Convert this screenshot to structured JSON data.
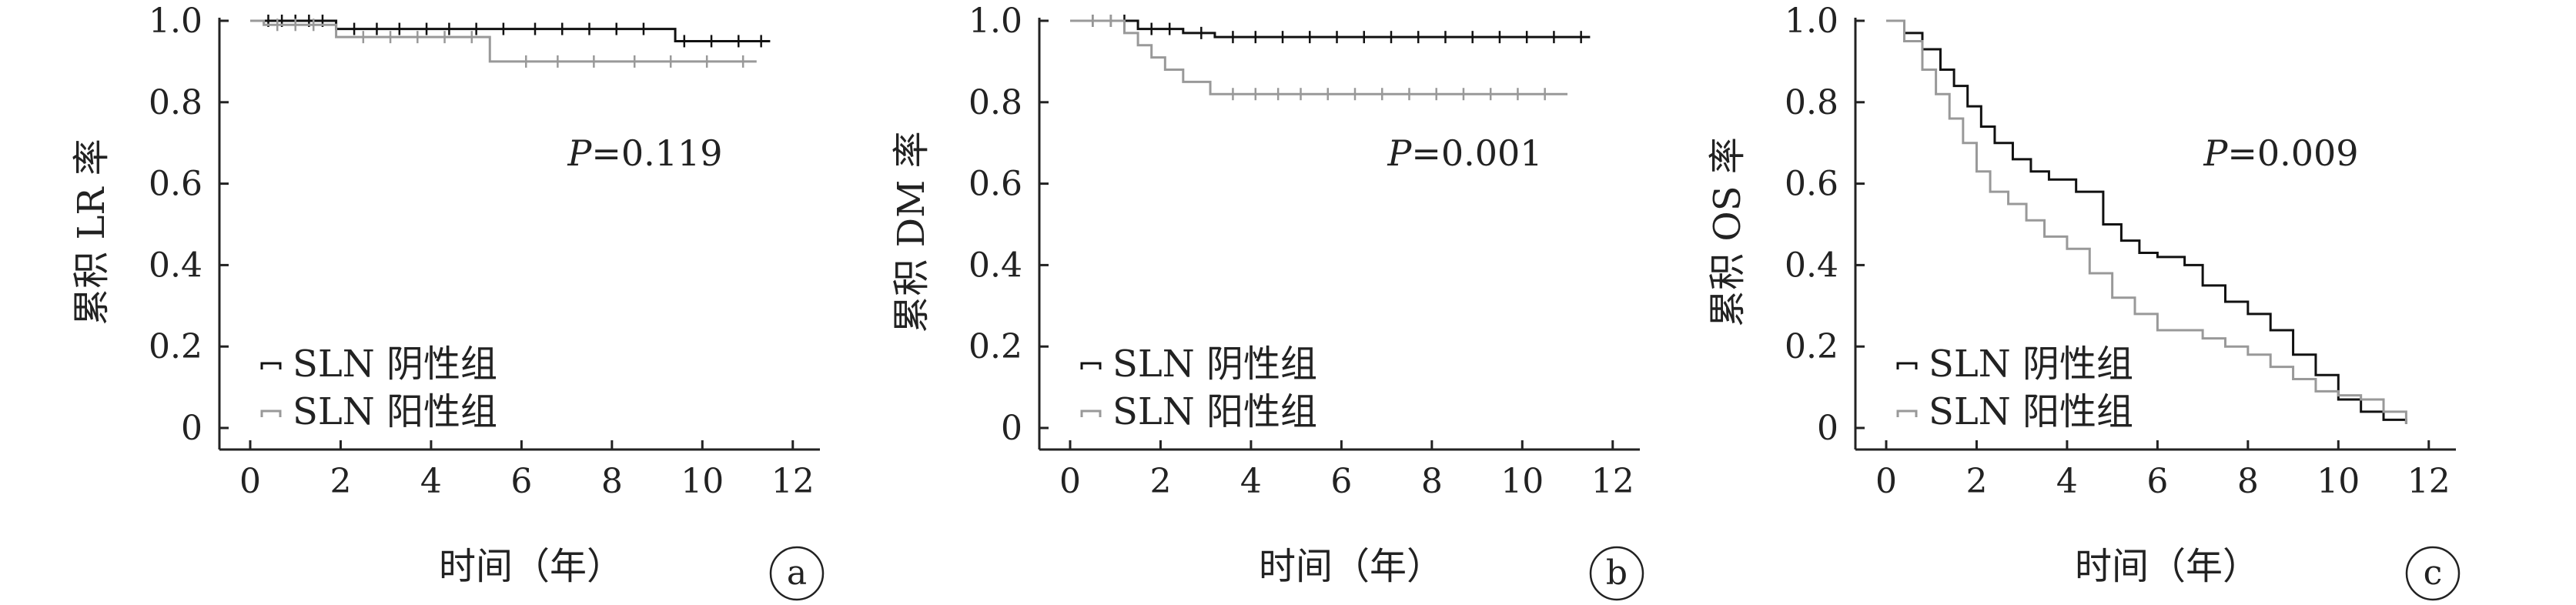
{
  "colors": {
    "negative": "#111111",
    "positive": "#999999",
    "axis": "#222222"
  },
  "chart_data": [
    {
      "type": "line",
      "panel": "a",
      "title": "",
      "xlabel": "时间（年）",
      "ylabel": "累积 LR 率",
      "xlim": [
        0,
        12
      ],
      "ylim": [
        0,
        1.0
      ],
      "xticks": [
        "0",
        "2",
        "4",
        "6",
        "8",
        "10",
        "12"
      ],
      "yticks": [
        "0",
        "0.2",
        "0.4",
        "0.6",
        "0.8",
        "1.0"
      ],
      "annotation": {
        "p_italic": "P",
        "p_value": "=0.119"
      },
      "legend_position": "bottom-left",
      "series": [
        {
          "name": "SLN 阴性组",
          "color": "#111111",
          "step": true,
          "x": [
            0,
            1.9,
            9.4,
            11.5
          ],
          "y": [
            1.0,
            0.98,
            0.95,
            0.95
          ],
          "censored": [
            0.4,
            0.7,
            1.0,
            1.3,
            1.6,
            2.3,
            2.8,
            3.3,
            3.9,
            4.4,
            5.0,
            5.6,
            6.3,
            6.9,
            7.5,
            8.1,
            8.7,
            9.6,
            10.2,
            10.8,
            11.3
          ]
        },
        {
          "name": "SLN 阳性组",
          "color": "#999999",
          "step": true,
          "x": [
            0,
            0.3,
            1.9,
            5.3,
            11.2
          ],
          "y": [
            1.0,
            0.99,
            0.96,
            0.9,
            0.9
          ],
          "censored": [
            0.6,
            1.0,
            1.4,
            2.5,
            3.1,
            3.7,
            4.3,
            4.9,
            6.1,
            6.8,
            7.6,
            8.5,
            9.3,
            10.1,
            10.9
          ]
        }
      ]
    },
    {
      "type": "line",
      "panel": "b",
      "title": "",
      "xlabel": "时间（年）",
      "ylabel": "累积 DM 率",
      "xlim": [
        0,
        12
      ],
      "ylim": [
        0,
        1.0
      ],
      "xticks": [
        "0",
        "2",
        "4",
        "6",
        "8",
        "10",
        "12"
      ],
      "yticks": [
        "0",
        "0.2",
        "0.4",
        "0.6",
        "0.8",
        "1.0"
      ],
      "annotation": {
        "p_italic": "P",
        "p_value": "=0.001"
      },
      "legend_position": "bottom-left",
      "series": [
        {
          "name": "SLN 阴性组",
          "color": "#111111",
          "step": true,
          "x": [
            0,
            1.5,
            2.5,
            3.2,
            11.5
          ],
          "y": [
            1.0,
            0.98,
            0.97,
            0.96,
            0.96
          ],
          "censored": [
            0.5,
            0.9,
            1.2,
            1.8,
            2.2,
            2.9,
            3.6,
            4.1,
            4.7,
            5.3,
            5.9,
            6.5,
            7.1,
            7.7,
            8.3,
            8.9,
            9.5,
            10.1,
            10.7,
            11.3
          ]
        },
        {
          "name": "SLN 阳性组",
          "color": "#999999",
          "step": true,
          "x": [
            0,
            1.2,
            1.5,
            1.8,
            2.1,
            2.5,
            3.1,
            11.0
          ],
          "y": [
            1.0,
            0.97,
            0.94,
            0.91,
            0.88,
            0.85,
            0.82,
            0.82
          ],
          "censored": [
            0.5,
            0.9,
            3.6,
            4.1,
            4.6,
            5.1,
            5.7,
            6.3,
            6.9,
            7.5,
            8.1,
            8.7,
            9.3,
            9.9,
            10.5
          ]
        }
      ]
    },
    {
      "type": "line",
      "panel": "c",
      "title": "",
      "xlabel": "时间（年）",
      "ylabel": "累积 OS 率",
      "xlim": [
        0,
        12
      ],
      "ylim": [
        0,
        1.0
      ],
      "xticks": [
        "0",
        "2",
        "4",
        "6",
        "8",
        "10",
        "12"
      ],
      "yticks": [
        "0",
        "0.2",
        "0.4",
        "0.6",
        "0.8",
        "1.0"
      ],
      "annotation": {
        "p_italic": "P",
        "p_value": "=0.009"
      },
      "legend_position": "bottom-left",
      "series": [
        {
          "name": "SLN 阴性组",
          "color": "#111111",
          "step": true,
          "x": [
            0,
            0.4,
            0.8,
            1.2,
            1.5,
            1.8,
            2.1,
            2.4,
            2.8,
            3.2,
            3.6,
            4.2,
            4.8,
            5.2,
            5.6,
            6.0,
            6.6,
            7.0,
            7.5,
            8.0,
            8.5,
            9.0,
            9.5,
            10.0,
            10.5,
            11.0,
            11.5
          ],
          "y": [
            1.0,
            0.97,
            0.93,
            0.88,
            0.84,
            0.79,
            0.74,
            0.7,
            0.66,
            0.63,
            0.61,
            0.58,
            0.5,
            0.46,
            0.43,
            0.42,
            0.4,
            0.35,
            0.31,
            0.28,
            0.24,
            0.18,
            0.13,
            0.07,
            0.04,
            0.02,
            0.01
          ]
        },
        {
          "name": "SLN 阳性组",
          "color": "#999999",
          "step": true,
          "x": [
            0,
            0.4,
            0.8,
            1.1,
            1.4,
            1.7,
            2.0,
            2.3,
            2.7,
            3.1,
            3.5,
            4.0,
            4.5,
            5.0,
            5.5,
            6.0,
            6.5,
            7.0,
            7.5,
            8.0,
            8.5,
            9.0,
            9.5,
            10.0,
            10.5,
            11.0,
            11.5
          ],
          "y": [
            1.0,
            0.95,
            0.88,
            0.82,
            0.76,
            0.7,
            0.63,
            0.58,
            0.55,
            0.51,
            0.47,
            0.44,
            0.38,
            0.32,
            0.28,
            0.24,
            0.24,
            0.22,
            0.2,
            0.18,
            0.15,
            0.12,
            0.09,
            0.08,
            0.07,
            0.04,
            0.01
          ]
        }
      ]
    }
  ]
}
